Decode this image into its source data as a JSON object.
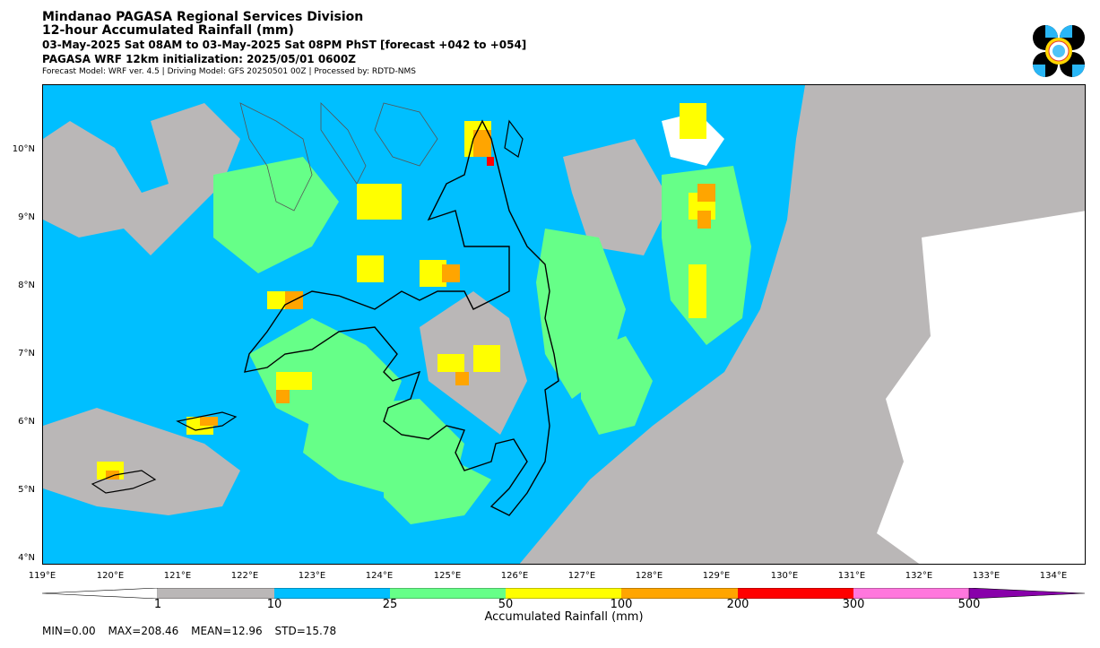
{
  "header": {
    "title": "Mindanao PAGASA Regional Services Division",
    "subtitle": "12-hour Accumulated Rainfall (mm)",
    "period": "03-May-2025 Sat 08AM to 03-May-2025 Sat 08PM PhST [forecast +042 to +054]",
    "init": "PAGASA WRF 12km initialization: 2025/05/01 0600Z",
    "model_info": "Forecast Model: WRF ver. 4.5 | Driving Model: GFS 20250501 00Z | Processed by: RDTD-NMS"
  },
  "axes": {
    "lat_labels": [
      "10°N",
      "9°N",
      "8°N",
      "7°N",
      "6°N",
      "5°N",
      "4°N"
    ],
    "lon_labels": [
      "119°E",
      "120°E",
      "121°E",
      "122°E",
      "123°E",
      "124°E",
      "125°E",
      "126°E",
      "127°E",
      "128°E",
      "129°E",
      "130°E",
      "131°E",
      "132°E",
      "133°E",
      "134°E"
    ]
  },
  "colorbar": {
    "label": "Accumulated Rainfall (mm)",
    "ticks": [
      "1",
      "10",
      "25",
      "50",
      "100",
      "200",
      "300",
      "500"
    ],
    "colors": {
      "below_1": "#ffffff",
      "1_10": "#bab7b7",
      "10_25": "#00bfff",
      "25_50": "#66ff88",
      "50_100": "#ffff00",
      "100_200": "#ffa500",
      "200_300": "#ff0000",
      "300_500": "#ff77dd",
      "above_500": "#8800aa"
    }
  },
  "stats": {
    "min": "MIN=0.00",
    "max": "MAX=208.46",
    "mean": "MEAN=12.96",
    "std": "STD=15.78"
  }
}
